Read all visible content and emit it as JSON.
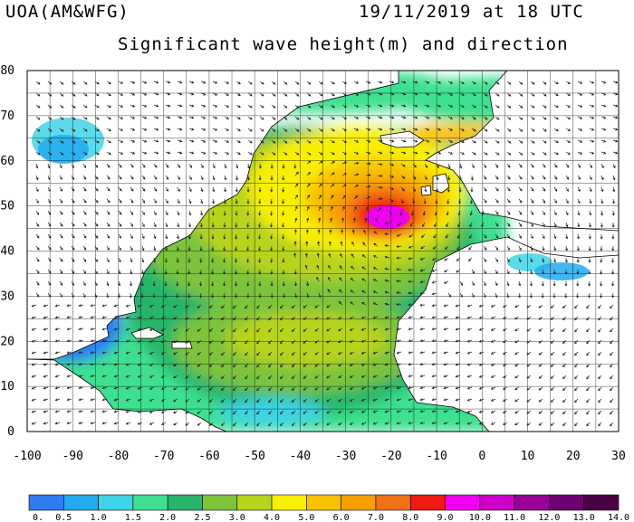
{
  "header": {
    "source": "UOA(AM&WFG)",
    "datetime": "19/11/2019 at 18 UTC",
    "title": "Significant wave height(m) and direction"
  },
  "map": {
    "lon_range": [
      -100,
      30
    ],
    "lat_range": [
      0,
      80
    ],
    "lon_ticks": [
      "-100",
      "-90",
      "-80",
      "-70",
      "-60",
      "-50",
      "-40",
      "-30",
      "-20",
      "-10",
      "0",
      "10",
      "20",
      "30"
    ],
    "lat_ticks": [
      "0",
      "10",
      "20",
      "30",
      "40",
      "50",
      "60",
      "70",
      "80"
    ],
    "grid": true,
    "land_color": "#ffffff",
    "coast_color": "#000000"
  },
  "colorbar": {
    "labels": [
      "0.",
      "0.5",
      "1.0",
      "1.5",
      "2.0",
      "2.5",
      "3.0",
      "4.0",
      "5.0",
      "6.0",
      "7.0",
      "8.0",
      "9.0",
      "10.0",
      "11.0",
      "12.0",
      "13.0",
      "14.0"
    ],
    "colors": [
      "#2e7bf2",
      "#22aaf0",
      "#3ed3e6",
      "#3ee090",
      "#27b56a",
      "#7cc43a",
      "#b7d31c",
      "#f8f000",
      "#f8c200",
      "#f6a000",
      "#f27018",
      "#ef1a10",
      "#f000f0",
      "#cc00c8",
      "#980098",
      "#6e0070",
      "#4a0044"
    ]
  }
}
